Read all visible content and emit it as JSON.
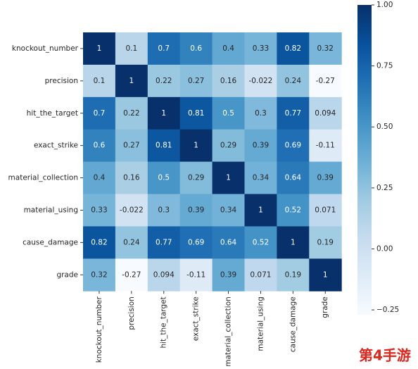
{
  "chart_data": {
    "type": "heatmap",
    "categories": [
      "knockout_number",
      "precision",
      "hit_the_target",
      "exact_strike",
      "material_collection",
      "material_using",
      "cause_damage",
      "grade"
    ],
    "values": [
      [
        1,
        0.1,
        0.7,
        0.6,
        0.4,
        0.33,
        0.82,
        0.32
      ],
      [
        0.1,
        1,
        0.22,
        0.27,
        0.16,
        -0.022,
        0.24,
        -0.27
      ],
      [
        0.7,
        0.22,
        1,
        0.81,
        0.5,
        0.3,
        0.77,
        0.094
      ],
      [
        0.6,
        0.27,
        0.81,
        1,
        0.29,
        0.39,
        0.69,
        -0.11
      ],
      [
        0.4,
        0.16,
        0.5,
        0.29,
        1,
        0.34,
        0.64,
        0.39
      ],
      [
        0.33,
        -0.022,
        0.3,
        0.39,
        0.34,
        1,
        0.52,
        0.071
      ],
      [
        0.82,
        0.24,
        0.77,
        0.69,
        0.64,
        0.52,
        1,
        0.19
      ],
      [
        0.32,
        -0.27,
        0.094,
        -0.11,
        0.39,
        0.071,
        0.19,
        1
      ]
    ],
    "zlim": [
      -0.27,
      1.0
    ],
    "zticks": [
      {
        "value": -0.25,
        "label": "−0.25"
      },
      {
        "value": 0,
        "label": "0.00"
      },
      0.25,
      {
        "value": 0.5,
        "label": "0.50"
      },
      0.75,
      {
        "value": 1,
        "label": "1.00"
      }
    ],
    "colormap": [
      "#f7fbff",
      "#deebf7",
      "#c6dbef",
      "#9ecae1",
      "#6baed6",
      "#4292c6",
      "#2171b5",
      "#08519c",
      "#08306b"
    ]
  },
  "watermark": "第4手游"
}
